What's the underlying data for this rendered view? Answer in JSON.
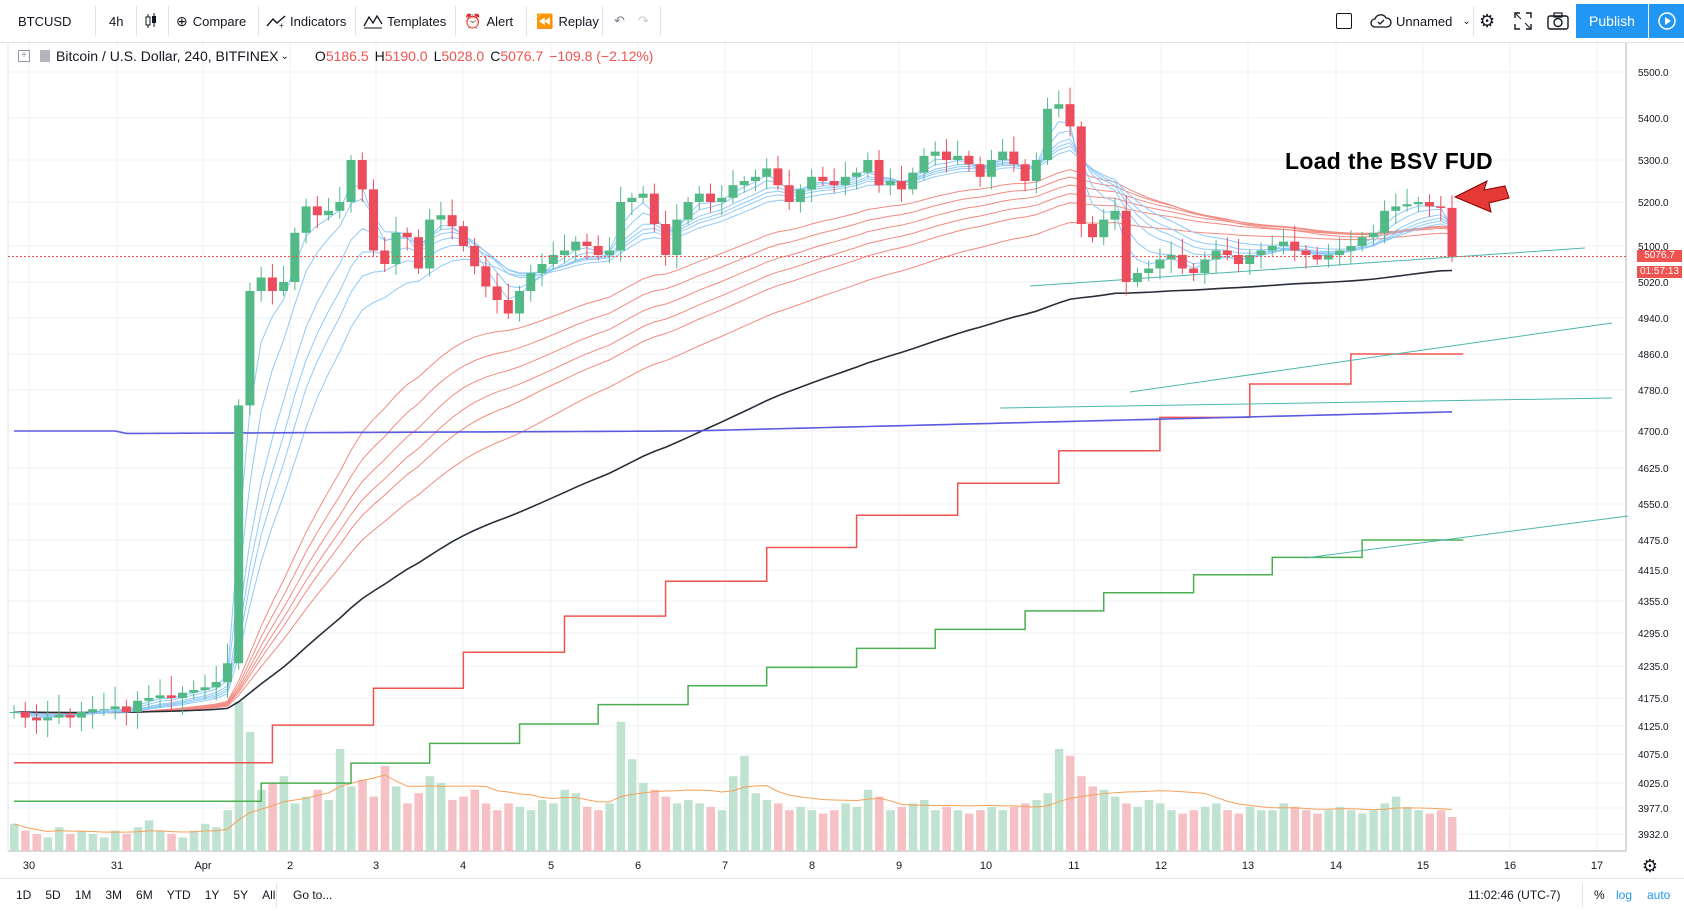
{
  "toolbar": {
    "symbol": "BTCUSD",
    "interval": "4h",
    "compare": "Compare",
    "indicators": "Indicators",
    "templates": "Templates",
    "alert": "Alert",
    "replay": "Replay",
    "layout_name": "Unnamed",
    "publish": "Publish"
  },
  "legend": {
    "title": "Bitcoin / U.S. Dollar, 240, BITFINEX",
    "o_label": "O",
    "o_value": "5186.5",
    "h_label": "H",
    "h_value": "5190.0",
    "l_label": "L",
    "l_value": "5028.0",
    "c_label": "C",
    "c_value": "5076.7",
    "change": "−109.8 (−2.12%)"
  },
  "annotation": "Load the BSV FUD",
  "price_tags": {
    "last_price": "5076.7",
    "countdown": "01:57:13"
  },
  "bottombar": {
    "ranges": [
      "1D",
      "5D",
      "1M",
      "3M",
      "6M",
      "YTD",
      "1Y",
      "5Y",
      "All"
    ],
    "goto": "Go to...",
    "clock": "11:02:46 (UTC-7)",
    "percent": "%",
    "log": "log",
    "auto": "auto"
  },
  "colors": {
    "up": "#53b987",
    "down": "#eb4d5c",
    "accent": "#2196f3",
    "blue_line": "#5b5be0",
    "green_line": "#4caf50",
    "red_line": "#ef5350"
  },
  "chart_data": {
    "type": "candlestick",
    "symbol": "Bitcoin / U.S. Dollar",
    "timeframe": "240",
    "exchange": "BITFINEX",
    "y_ticks": [
      "5500.0",
      "5400.0",
      "5300.0",
      "5200.0",
      "5100.0",
      "5020.0",
      "4940.0",
      "4860.0",
      "4780.0",
      "4700.0",
      "4625.0",
      "4550.0",
      "4475.0",
      "4415.0",
      "4355.0",
      "4295.0",
      "4235.0",
      "4175.0",
      "4125.0",
      "4075.0",
      "4025.0",
      "3977.0",
      "3932.0"
    ],
    "x_ticks": [
      "30",
      "31",
      "Apr",
      "2",
      "3",
      "4",
      "5",
      "6",
      "7",
      "8",
      "9",
      "10",
      "11",
      "12",
      "13",
      "14",
      "15",
      "16",
      "17"
    ],
    "ylim": [
      3900,
      5560
    ],
    "last_close": 5076.7,
    "closes": [
      4150,
      4140,
      4135,
      4140,
      4145,
      4140,
      4150,
      4155,
      4155,
      4160,
      4150,
      4170,
      4175,
      4180,
      4175,
      4185,
      4190,
      4195,
      4205,
      4240,
      4750,
      5000,
      5030,
      5000,
      5020,
      5130,
      5190,
      5170,
      5180,
      5200,
      5300,
      5230,
      5090,
      5060,
      5130,
      5120,
      5050,
      5160,
      5170,
      5145,
      5100,
      5055,
      5010,
      4980,
      4950,
      5000,
      5040,
      5060,
      5080,
      5090,
      5110,
      5100,
      5080,
      5090,
      5200,
      5210,
      5220,
      5150,
      5080,
      5160,
      5200,
      5220,
      5200,
      5210,
      5240,
      5250,
      5260,
      5280,
      5240,
      5200,
      5230,
      5260,
      5250,
      5240,
      5260,
      5270,
      5300,
      5240,
      5250,
      5230,
      5270,
      5310,
      5320,
      5300,
      5310,
      5290,
      5260,
      5300,
      5320,
      5290,
      5250,
      5300,
      5420,
      5430,
      5380,
      5150,
      5120,
      5160,
      5180,
      5020,
      5040,
      5050,
      5070,
      5080,
      5050,
      5040,
      5070,
      5090,
      5080,
      5060,
      5080,
      5090,
      5100,
      5110,
      5090,
      5080,
      5070,
      5080,
      5090,
      5100,
      5120,
      5130,
      5180,
      5190,
      5195,
      5200,
      5190,
      5186.5,
      5076.7
    ],
    "volumes": [
      8,
      6,
      5,
      4,
      7,
      5,
      6,
      5,
      4,
      6,
      5,
      7,
      9,
      6,
      5,
      4,
      6,
      8,
      7,
      12,
      44,
      35,
      18,
      20,
      22,
      14,
      16,
      18,
      15,
      30,
      19,
      21,
      16,
      25,
      19,
      14,
      17,
      22,
      20,
      15,
      16,
      18,
      14,
      12,
      14,
      13,
      12,
      15,
      14,
      18,
      17,
      13,
      12,
      14,
      38,
      27,
      20,
      18,
      16,
      14,
      15,
      14,
      13,
      12,
      22,
      28,
      17,
      15,
      14,
      12,
      13,
      12,
      11,
      12,
      14,
      13,
      18,
      16,
      12,
      13,
      14,
      15,
      12,
      13,
      12,
      11,
      12,
      13,
      12,
      13,
      14,
      15,
      17,
      30,
      28,
      22,
      19,
      18,
      16,
      14,
      13,
      15,
      14,
      12,
      11,
      12,
      13,
      14,
      12,
      11,
      13,
      12,
      12,
      14,
      13,
      12,
      11,
      12,
      13,
      12,
      11,
      12,
      14,
      16,
      13,
      12,
      11,
      12,
      10
    ]
  }
}
